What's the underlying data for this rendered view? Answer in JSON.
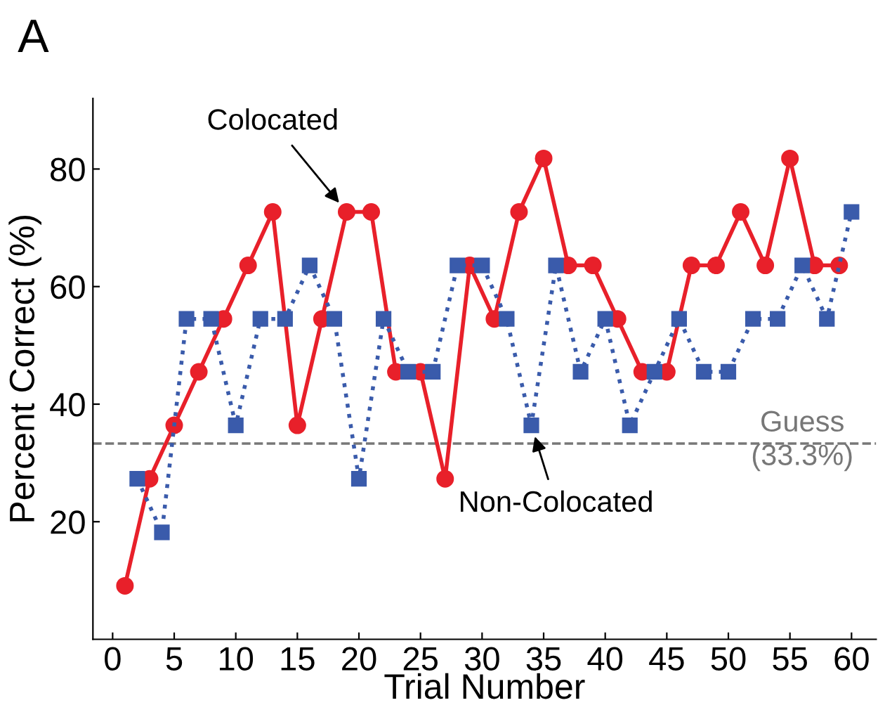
{
  "chart_data": {
    "type": "line",
    "xlabel": "Trial Number",
    "ylabel": "Percent Correct (%)",
    "xlim": [
      -1.6,
      62
    ],
    "ylim": [
      0,
      92
    ],
    "xticks": [
      0,
      5,
      10,
      15,
      20,
      25,
      30,
      35,
      40,
      45,
      50,
      55,
      60
    ],
    "yticks": [
      20,
      40,
      60,
      80
    ],
    "grid": false,
    "legend": false,
    "series": [
      {
        "name": "Colocated",
        "color": "#e8202a",
        "marker": "circle",
        "line_style": "solid",
        "x": [
          1,
          3,
          5,
          7,
          9,
          11,
          13,
          15,
          17,
          19,
          21,
          23,
          25,
          27,
          29,
          31,
          33,
          35,
          37,
          39,
          41,
          43,
          45,
          47,
          49,
          51,
          53,
          55,
          57,
          59
        ],
        "values": [
          9.1,
          27.3,
          36.4,
          45.5,
          54.5,
          63.6,
          72.7,
          36.4,
          54.5,
          72.7,
          72.7,
          45.5,
          45.5,
          27.3,
          63.6,
          54.5,
          72.7,
          81.8,
          63.6,
          63.6,
          54.5,
          45.5,
          45.5,
          63.6,
          63.6,
          72.7,
          63.6,
          81.8,
          63.6,
          63.6
        ]
      },
      {
        "name": "Non-Colocated",
        "color": "#3a5bab",
        "marker": "square",
        "line_style": "dotted",
        "x": [
          2,
          4,
          6,
          8,
          10,
          12,
          14,
          16,
          18,
          20,
          22,
          24,
          26,
          28,
          30,
          32,
          34,
          36,
          38,
          40,
          42,
          44,
          46,
          48,
          50,
          52,
          54,
          56,
          58,
          60
        ],
        "values": [
          27.3,
          18.2,
          54.5,
          54.5,
          36.4,
          54.5,
          54.5,
          63.6,
          54.5,
          27.3,
          54.5,
          45.5,
          45.5,
          63.6,
          63.6,
          54.5,
          36.4,
          63.6,
          45.5,
          54.5,
          36.4,
          45.5,
          54.5,
          45.5,
          45.5,
          54.5,
          54.5,
          63.6,
          54.5,
          72.7
        ]
      }
    ],
    "ref_lines": [
      {
        "axis": "y",
        "value": 33.3,
        "label": "Guess\n(33.3%)",
        "color": "#777777",
        "line_style": "dashed"
      }
    ],
    "annotations": [
      "A"
    ]
  }
}
